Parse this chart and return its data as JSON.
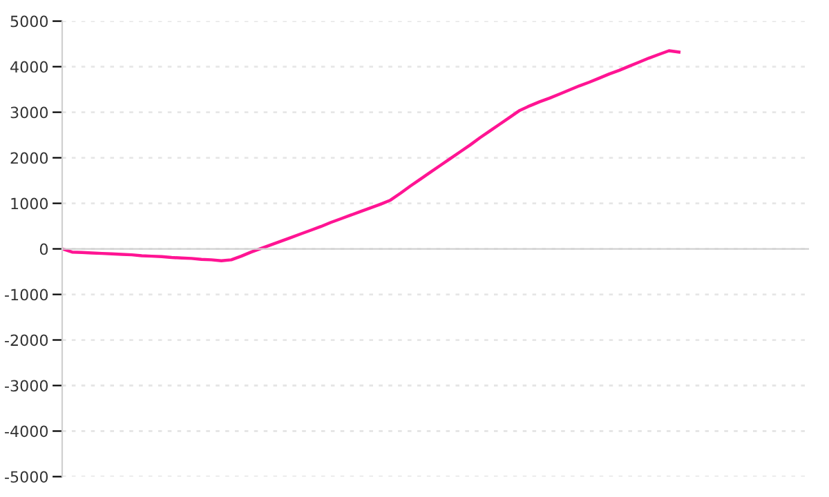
{
  "chart_data": {
    "type": "line",
    "categories": [
      null,
      null,
      null,
      null,
      null,
      null,
      null,
      null,
      null,
      null,
      null,
      null,
      null,
      null,
      null,
      null,
      null,
      null,
      null,
      null,
      null,
      null,
      null,
      null,
      null,
      null,
      null,
      null,
      null,
      null,
      null,
      null,
      null,
      null,
      null,
      null,
      null,
      null,
      null,
      null,
      null,
      null,
      null,
      null,
      null,
      null,
      null,
      null,
      null,
      null,
      null,
      null,
      null,
      null,
      null,
      null,
      null,
      null,
      null,
      null,
      null,
      null,
      null,
      null,
      null,
      null,
      null,
      null,
      null,
      null,
      null,
      null,
      null,
      null,
      null,
      null
    ],
    "series": [
      {
        "color": "#ff1493",
        "values": [
          0,
          -70,
          -80,
          -90,
          -100,
          -110,
          -120,
          -130,
          -150,
          -160,
          -170,
          -190,
          -200,
          -210,
          -230,
          -240,
          -260,
          -240,
          -160,
          -70,
          10,
          90,
          170,
          250,
          330,
          410,
          490,
          580,
          660,
          740,
          820,
          900,
          980,
          1070,
          1220,
          1380,
          1530,
          1680,
          1830,
          1980,
          2130,
          2280,
          2440,
          2590,
          2740,
          2890,
          3040,
          3140,
          3230,
          3310,
          3400,
          3490,
          3580,
          3660,
          3750,
          3840,
          3920,
          4010,
          4100,
          4190,
          4270,
          4350,
          4320,
          null,
          null,
          null,
          null,
          null,
          null,
          null,
          null,
          null,
          null,
          null,
          null,
          null
        ]
      }
    ],
    "ylim": [
      -5000,
      5000
    ],
    "yticks": [
      -5000,
      -4000,
      -3000,
      -2000,
      -1000,
      0,
      1000,
      2000,
      3000,
      4000,
      5000
    ],
    "grid": "y",
    "line_style": "solid",
    "marker": "none"
  }
}
